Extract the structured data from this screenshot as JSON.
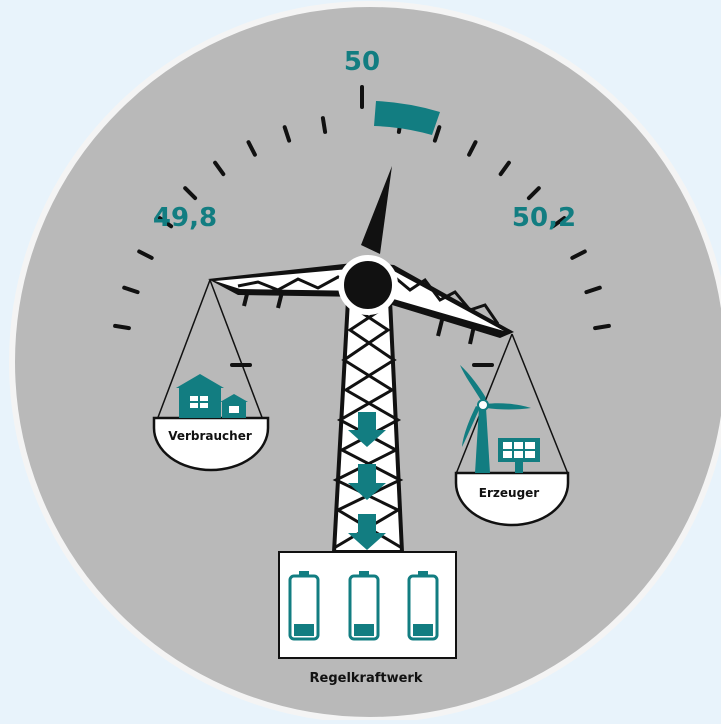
{
  "gauge": {
    "center_label": "50",
    "left_label": "49,8",
    "right_label": "50,2"
  },
  "scale": {
    "left_pan_label": "Verbraucher",
    "right_pan_label": "Erzeuger"
  },
  "plant": {
    "label": "Regelkraftwerk",
    "battery_count": 3
  },
  "colors": {
    "teal": "#127d81",
    "background_circle": "#b9b9b9",
    "outer_background": "#e8f3fb",
    "black": "#111111",
    "white": "#ffffff"
  }
}
